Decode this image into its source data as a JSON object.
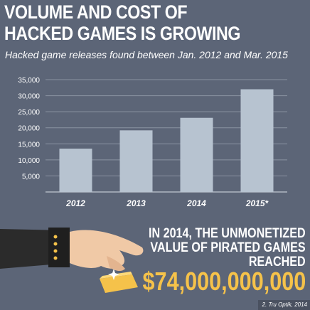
{
  "title_lines": [
    "VOLUME AND COST OF",
    "HACKED GAMES IS GROWING"
  ],
  "subtitle": "Hacked game releases found between Jan. 2012 and Mar. 2015",
  "chart_data": {
    "type": "bar",
    "title": "VOLUME AND COST OF HACKED GAMES IS GROWING",
    "subtitle": "Hacked game releases found between Jan. 2012 and Mar. 2015",
    "categories": [
      "2012",
      "2013",
      "2014",
      "2015*"
    ],
    "values": [
      13500,
      19200,
      23100,
      32000
    ],
    "yticks": [
      "5,000",
      "10,000",
      "15,000",
      "20,000",
      "25,000",
      "30,000",
      "35,000"
    ],
    "ylim": [
      0,
      35000
    ],
    "grid": true,
    "xlabel": "",
    "ylabel": "",
    "colors": {
      "bar": "#b7c3d0",
      "grid": "#8a93a2",
      "text": "#ffffff"
    }
  },
  "stat_lines": [
    "IN 2014, THE UNMONETIZED",
    "VALUE OF PIRATED GAMES",
    "REACHED"
  ],
  "amount": "$74,000,000,000",
  "source": "2. Tru Optik, 2014",
  "colors": {
    "background": "#5c6577",
    "accent": "#f5c24a"
  }
}
